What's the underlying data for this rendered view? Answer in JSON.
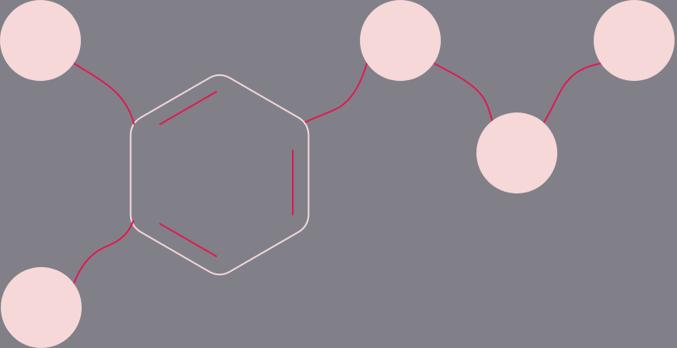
{
  "diagram": {
    "kind": "molecular structure",
    "ring": {
      "type": "benzene",
      "double_bond_count": 3
    },
    "atom_count": 6,
    "bond_count": 6
  },
  "colors": {
    "background": "#818089",
    "node_fill": "#f6d8d9",
    "ring_outline": "#f3d6d6",
    "bond": "#e01a4f"
  }
}
